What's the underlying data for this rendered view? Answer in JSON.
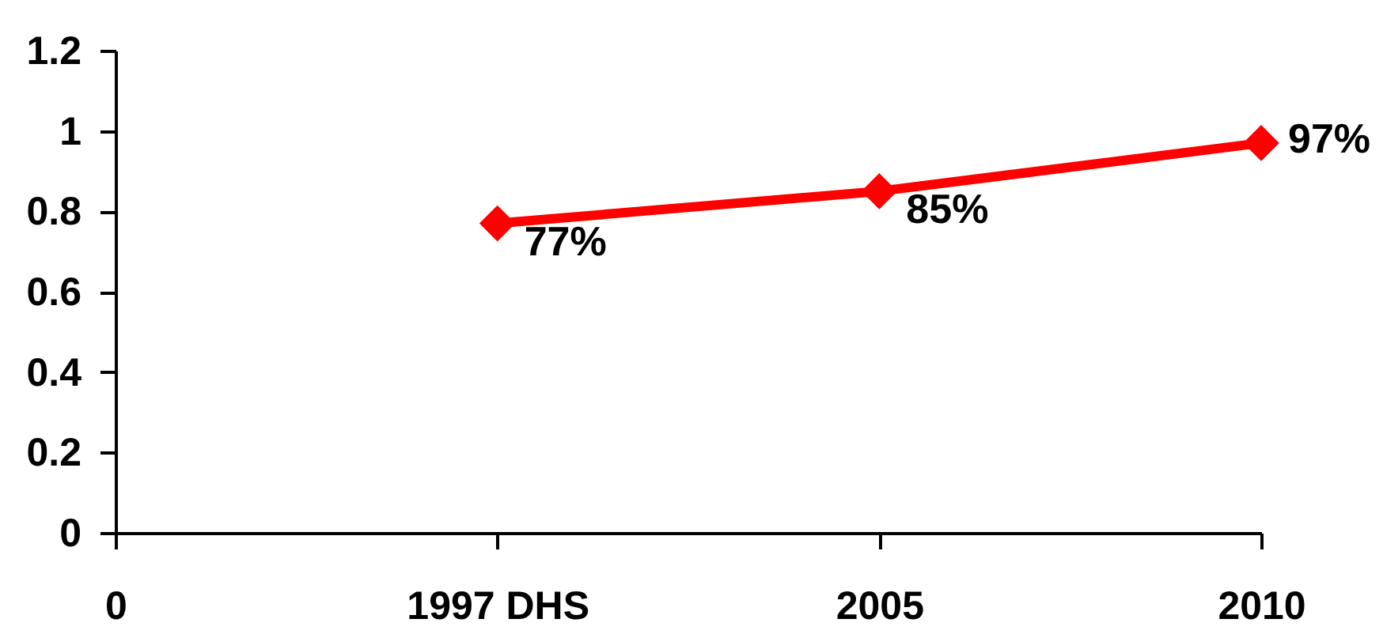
{
  "chart_data": {
    "type": "line",
    "categories": [
      "0",
      "1997 DHS",
      "2005",
      "2010"
    ],
    "series": [
      {
        "color": "#ff0000",
        "values": [
          null,
          0.77,
          0.85,
          0.97
        ],
        "value_labels": [
          null,
          "77%",
          "85%",
          "97%"
        ]
      }
    ],
    "ylim": [
      0,
      1.2
    ],
    "yticks": [
      0,
      0.2,
      0.4,
      0.6,
      0.8,
      1,
      1.2
    ],
    "marker": "diamond",
    "line_style": "solid"
  }
}
